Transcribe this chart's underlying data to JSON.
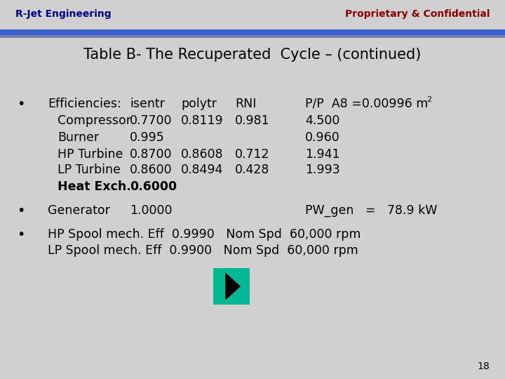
{
  "background_color": "#d0d0d0",
  "header_left": "R-Jet Engineering",
  "header_right": "Proprietary & Confidential",
  "header_left_color": "#00008B",
  "header_right_color": "#8B0000",
  "header_bar_top_color": "#3a5fcd",
  "header_bar_bot_color": "#7a7aaa",
  "title": "Table B- The Recuperated  Cycle – (continued)",
  "title_color": "#000000",
  "title_fontsize": 15,
  "bullet_color": "#000000",
  "row_compressor": [
    "Compressor",
    "0.7700",
    "0.8119",
    "0.981",
    "4.500"
  ],
  "row_burner": [
    "Burner",
    "0.995",
    "",
    "",
    "0.960"
  ],
  "row_hp_turbine": [
    "HP Turbine",
    "0.8700",
    "0.8608",
    "0.712",
    "1.941"
  ],
  "row_lp_turbine": [
    "LP Turbine",
    "0.8600",
    "0.8494",
    "0.428",
    "1.993"
  ],
  "page_number": "18",
  "arrow_color": "#00b894",
  "font_family": "DejaVu Sans"
}
